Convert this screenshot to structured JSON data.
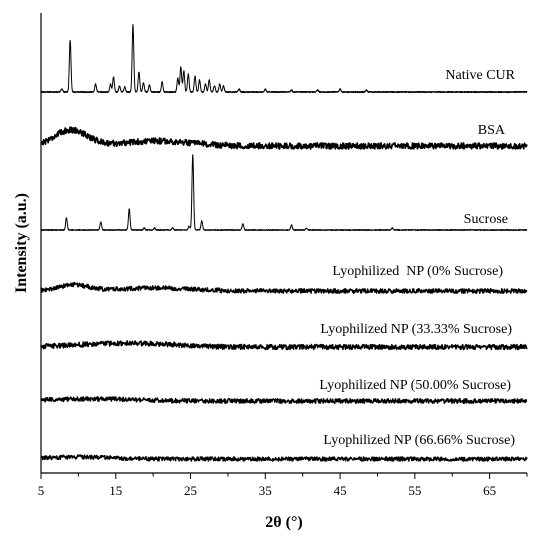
{
  "chart_data": {
    "type": "line",
    "title": "",
    "xlabel": "2θ (°)",
    "ylabel": "Intensity (a.u.)",
    "xlim": [
      5,
      70
    ],
    "x_ticks": [
      5,
      15,
      25,
      35,
      45,
      55,
      65
    ],
    "x_minor_ticks": [
      10,
      20,
      30,
      40,
      50,
      60,
      70
    ],
    "y_ticks": [],
    "grid": false,
    "legend": "none",
    "stacked_offset": true,
    "series": [
      {
        "name": "Native CUR",
        "kind": "crystalline",
        "baseline_noise": 0.6,
        "peaks": [
          {
            "x": 7.8,
            "h": 3
          },
          {
            "x": 8.9,
            "h": 52
          },
          {
            "x": 12.3,
            "h": 8
          },
          {
            "x": 14.3,
            "h": 8
          },
          {
            "x": 14.7,
            "h": 15
          },
          {
            "x": 15.5,
            "h": 6
          },
          {
            "x": 16.2,
            "h": 5
          },
          {
            "x": 17.3,
            "h": 67
          },
          {
            "x": 18.1,
            "h": 20
          },
          {
            "x": 18.7,
            "h": 9
          },
          {
            "x": 19.5,
            "h": 7
          },
          {
            "x": 21.2,
            "h": 10
          },
          {
            "x": 23.3,
            "h": 14
          },
          {
            "x": 23.7,
            "h": 25
          },
          {
            "x": 24.1,
            "h": 21
          },
          {
            "x": 24.7,
            "h": 18
          },
          {
            "x": 25.6,
            "h": 16
          },
          {
            "x": 26.2,
            "h": 12
          },
          {
            "x": 27.0,
            "h": 8
          },
          {
            "x": 27.5,
            "h": 12
          },
          {
            "x": 28.2,
            "h": 6
          },
          {
            "x": 28.9,
            "h": 8
          },
          {
            "x": 29.4,
            "h": 6
          },
          {
            "x": 31.5,
            "h": 3
          },
          {
            "x": 35.0,
            "h": 3
          },
          {
            "x": 38.5,
            "h": 2
          },
          {
            "x": 42.0,
            "h": 2
          },
          {
            "x": 45.0,
            "h": 3
          },
          {
            "x": 48.5,
            "h": 2
          }
        ]
      },
      {
        "name": "BSA",
        "kind": "amorphous",
        "baseline_noise": 3.0,
        "humps": [
          {
            "x": 9.0,
            "h": 16,
            "w": 2.2
          },
          {
            "x": 20.5,
            "h": 5,
            "w": 4.5
          }
        ]
      },
      {
        "name": "Sucrose",
        "kind": "crystalline",
        "baseline_noise": 0.5,
        "peaks": [
          {
            "x": 8.4,
            "h": 12
          },
          {
            "x": 13.0,
            "h": 8
          },
          {
            "x": 16.8,
            "h": 21
          },
          {
            "x": 18.8,
            "h": 2
          },
          {
            "x": 20.2,
            "h": 2
          },
          {
            "x": 22.6,
            "h": 2
          },
          {
            "x": 24.8,
            "h": 4
          },
          {
            "x": 25.3,
            "h": 75
          },
          {
            "x": 26.5,
            "h": 9
          },
          {
            "x": 32.0,
            "h": 6
          },
          {
            "x": 38.5,
            "h": 5
          },
          {
            "x": 40.5,
            "h": 2
          },
          {
            "x": 52.0,
            "h": 2
          }
        ]
      },
      {
        "name": "Lyophilized  NP (0% Sucrose)",
        "kind": "amorphous",
        "baseline_noise": 2.2,
        "humps": [
          {
            "x": 9.3,
            "h": 6,
            "w": 2.0
          },
          {
            "x": 20.0,
            "h": 3,
            "w": 5.0
          }
        ]
      },
      {
        "name": "Lyophilized NP (33.33% Sucrose)",
        "kind": "amorphous",
        "baseline_noise": 2.5,
        "humps": [
          {
            "x": 14.0,
            "h": 3,
            "w": 5.0
          },
          {
            "x": 21.0,
            "h": 2,
            "w": 4.0
          }
        ]
      },
      {
        "name": "Lyophilized NP (50.00% Sucrose)",
        "kind": "amorphous",
        "baseline_noise": 2.2,
        "humps": [
          {
            "x": 12.0,
            "h": 2,
            "w": 6.0
          }
        ]
      },
      {
        "name": "Lyophilized NP (66.66% Sucrose)",
        "kind": "amorphous",
        "baseline_noise": 2.0,
        "humps": [
          {
            "x": 10.0,
            "h": 2,
            "w": 4.0
          }
        ]
      }
    ]
  }
}
